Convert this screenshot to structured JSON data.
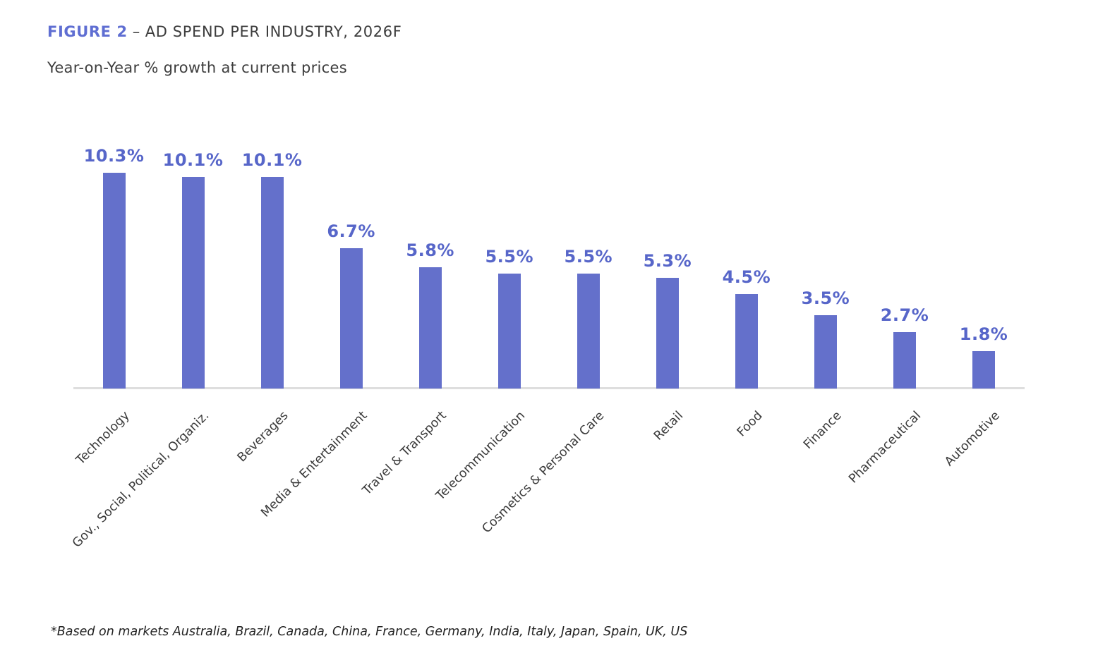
{
  "header": {
    "figure_label": "FIGURE 2",
    "separator": "–",
    "title": "AD SPEND PER INDUSTRY, 2026F",
    "subtitle": "Year-on-Year % growth at current prices"
  },
  "footnote": "*Based on markets Australia, Brazil, Canada, China, France, Germany, India, Italy, Japan, Spain, UK, US",
  "colors": {
    "accent_title": "#5F6ED2",
    "bar": "#6470CB",
    "value_label": "#5766C9",
    "axis_line": "#DEDEDE",
    "text_dark": "#3D3D3D"
  },
  "chart_data": {
    "type": "bar",
    "title": "AD SPEND PER INDUSTRY, 2026F",
    "subtitle": "Year-on-Year % growth at current prices",
    "categories": [
      "Technology",
      "Gov., Social, Political, Organiz.",
      "Beverages",
      "Media & Entertainment",
      "Travel & Transport",
      "Telecommunication",
      "Cosmetics & Personal Care",
      "Retail",
      "Food",
      "Finance",
      "Pharmaceutical",
      "Automotive"
    ],
    "values": [
      10.3,
      10.1,
      10.1,
      6.7,
      5.8,
      5.5,
      5.5,
      5.3,
      4.5,
      3.5,
      2.7,
      1.8
    ],
    "value_labels": [
      "10.3%",
      "10.1%",
      "10.1%",
      "6.7%",
      "5.8%",
      "5.5%",
      "5.5%",
      "5.3%",
      "4.5%",
      "3.5%",
      "2.7%",
      "1.8%"
    ],
    "ylim": [
      0,
      11
    ],
    "grid": false,
    "legend": false,
    "bar_color": "#6470CB",
    "x_label_rotation_deg": -45
  }
}
